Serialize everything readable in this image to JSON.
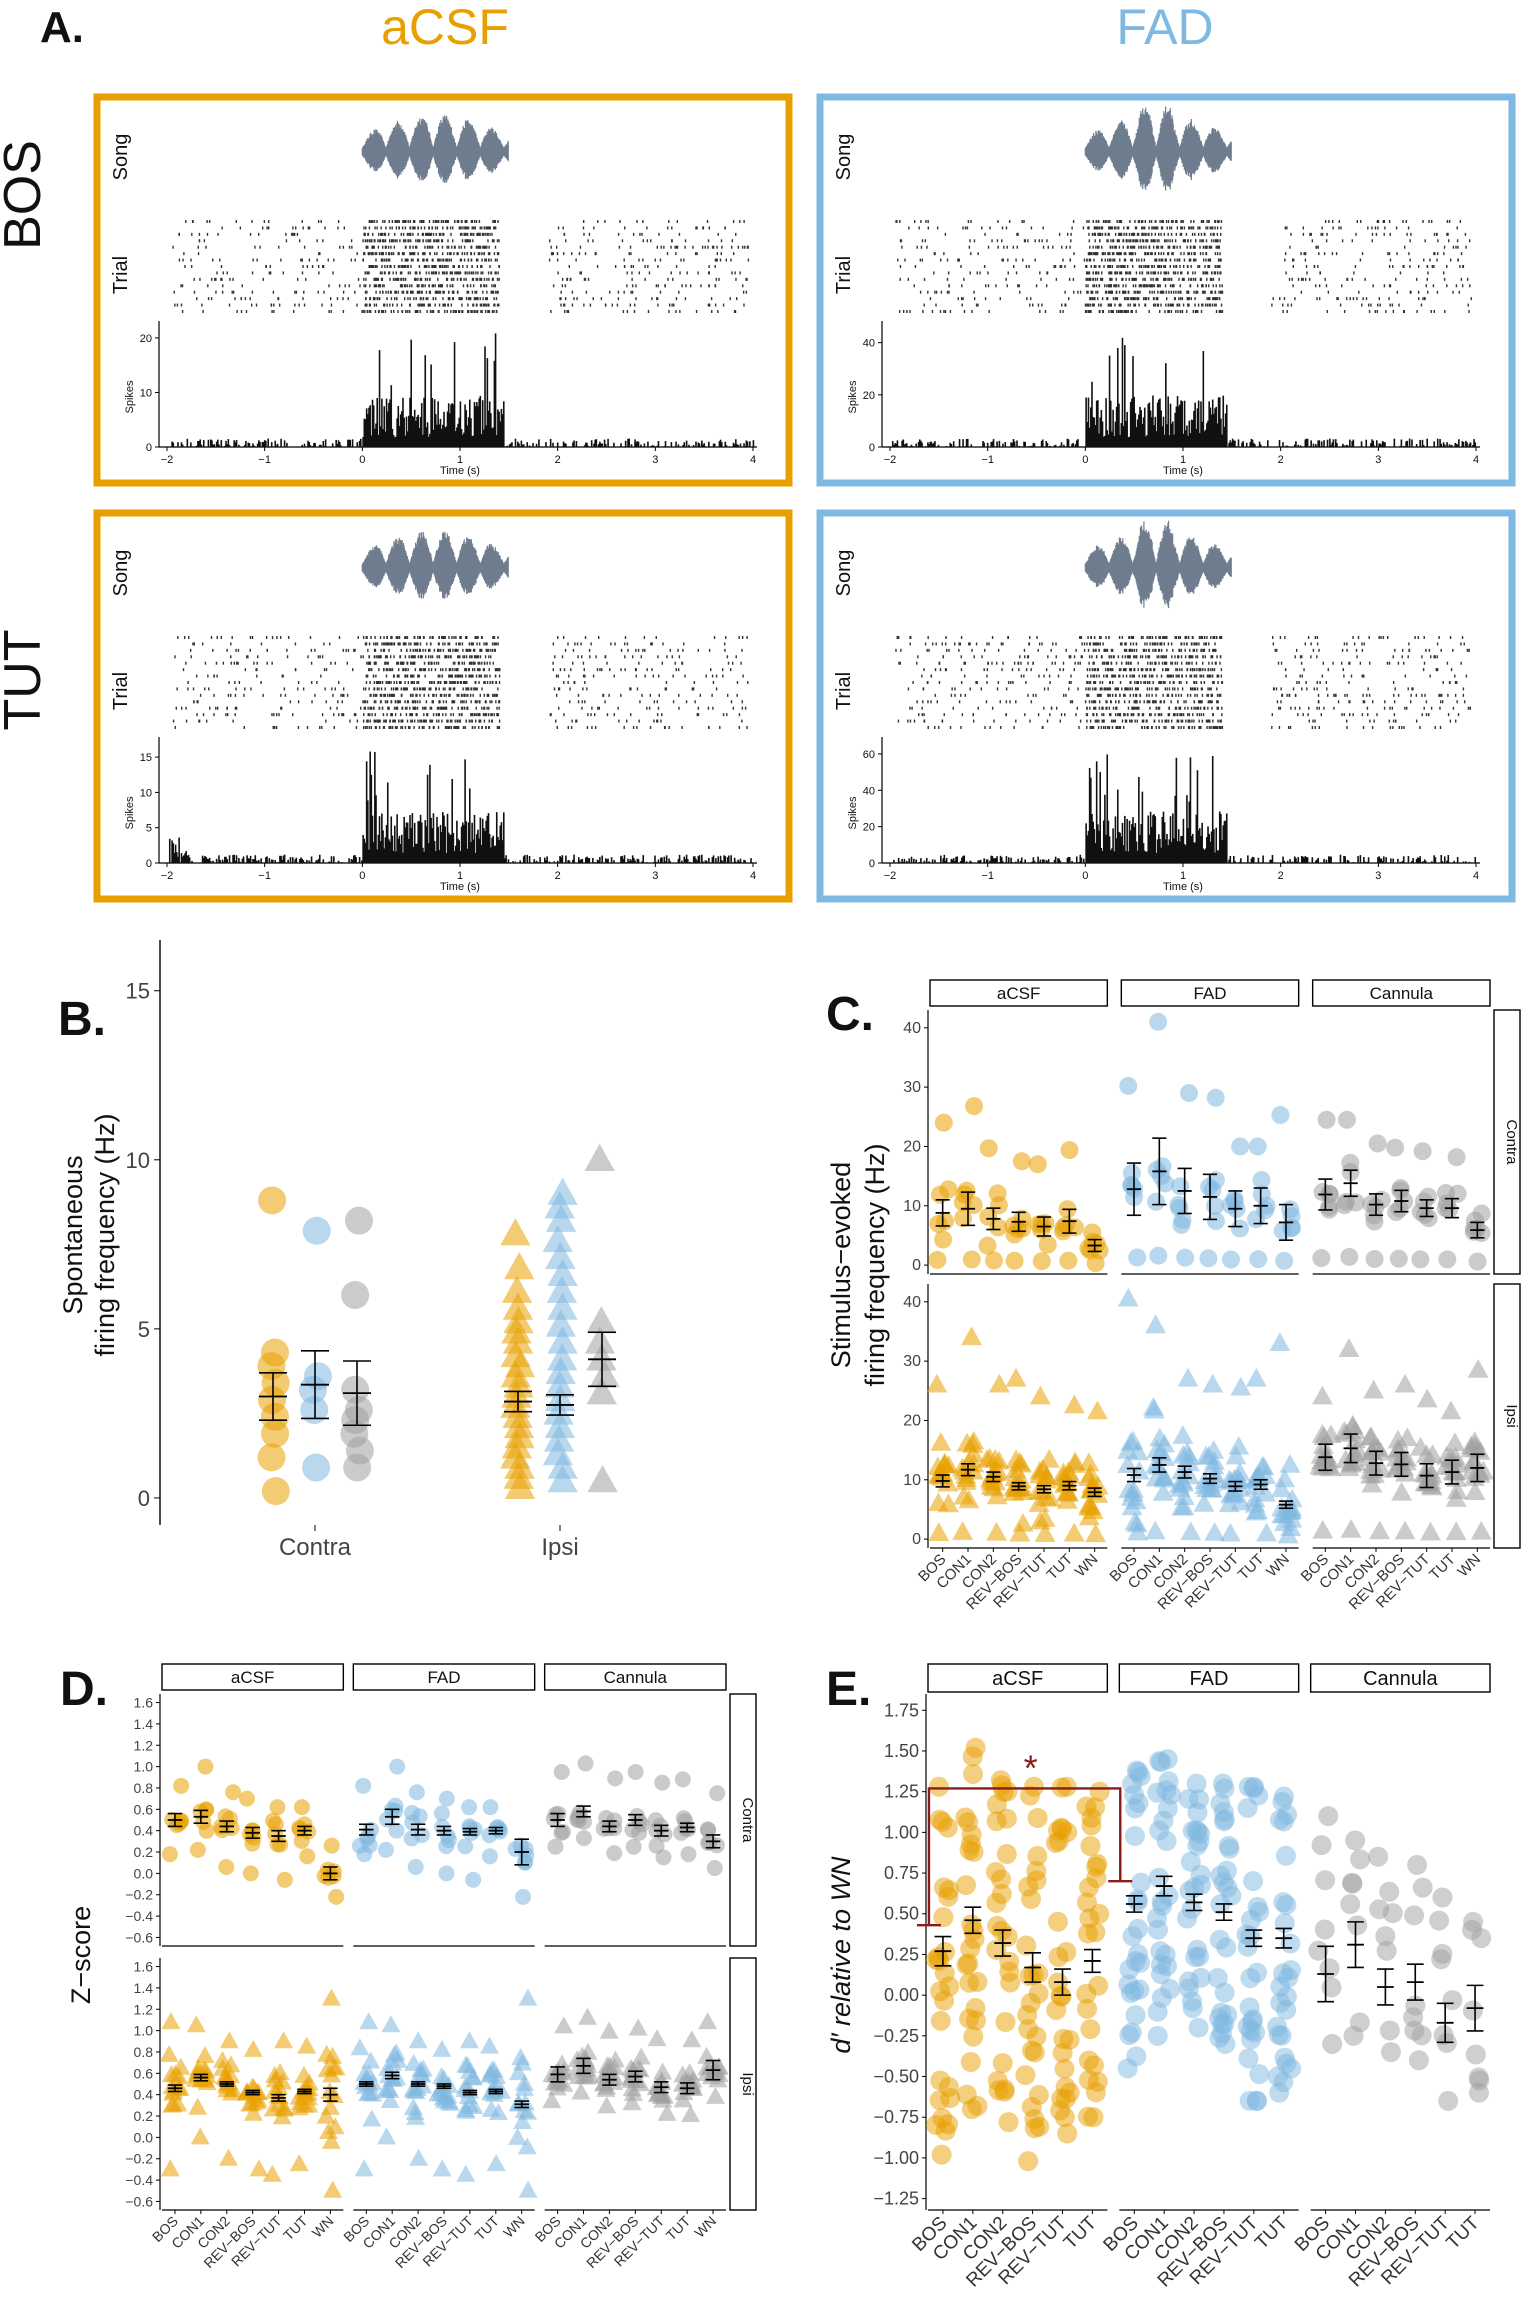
{
  "colors": {
    "acsf": "#E8A000",
    "fad": "#7FB8E0",
    "cannula": "#A0A0A0",
    "sig": "#8B1A1A",
    "wave": "#6F7D8F",
    "ink": "#111111"
  },
  "panel_a": {
    "label": "A.",
    "col_headers": [
      "aCSF",
      "FAD"
    ],
    "row_labels": [
      "BOS",
      "TUT"
    ],
    "track_labels": {
      "song": "Song",
      "trial": "Trial",
      "spikes": "Spikes"
    },
    "xlabel": "Time (s)",
    "xticks": [
      "−2",
      "−1",
      "0",
      "1",
      "2",
      "3",
      "4"
    ],
    "subpanels": [
      {
        "col": "aCSF",
        "row": "BOS",
        "yticks": [
          "0",
          "10",
          "20"
        ],
        "ymax": 22
      },
      {
        "col": "FAD",
        "row": "BOS",
        "yticks": [
          "0",
          "20",
          "40"
        ],
        "ymax": 46
      },
      {
        "col": "aCSF",
        "row": "TUT",
        "yticks": [
          "0",
          "5",
          "10",
          "15"
        ],
        "ymax": 17
      },
      {
        "col": "FAD",
        "row": "TUT",
        "yticks": [
          "0",
          "20",
          "40",
          "60"
        ],
        "ymax": 66
      }
    ]
  },
  "chart_data": [
    {
      "id": "B",
      "label": "B.",
      "type": "scatter",
      "ylabel_lines": [
        "Spontaneous",
        "firing frequency (Hz)"
      ],
      "categories": [
        "Contra",
        "Ipsi"
      ],
      "ylim": [
        -0.8,
        16.5
      ],
      "yticks": [
        "0",
        "5",
        "10",
        "15"
      ],
      "series": [
        {
          "name": "aCSF",
          "color_key": "acsf",
          "contra": {
            "mean": 3.0,
            "err": 0.7,
            "points": [
              8.8,
              4.3,
              3.9,
              3.4,
              2.9,
              2.4,
              1.9,
              1.2,
              0.2
            ]
          },
          "ipsi": {
            "mean": 2.85,
            "err": 0.3,
            "points": [
              7.8,
              6.8,
              6.1,
              5.6,
              5.2,
              4.9,
              4.6,
              4.2,
              3.9,
              3.6,
              3.3,
              3.0,
              2.7,
              2.4,
              2.1,
              1.8,
              1.5,
              1.2,
              0.9,
              0.6,
              0.3
            ]
          }
        },
        {
          "name": "FAD",
          "color_key": "fad",
          "contra": {
            "mean": 3.35,
            "err": 1.0,
            "points": [
              7.9,
              3.6,
              3.2,
              2.6,
              0.9
            ]
          },
          "ipsi": {
            "mean": 2.75,
            "err": 0.3,
            "points": [
              9.0,
              8.6,
              8.2,
              7.6,
              7.1,
              6.6,
              6.1,
              5.6,
              5.1,
              4.6,
              4.1,
              3.7,
              3.3,
              2.9,
              2.5,
              2.1,
              1.7,
              1.3,
              0.9,
              0.5
            ]
          }
        },
        {
          "name": "Cannula",
          "color_key": "cannula",
          "contra": {
            "mean": 3.1,
            "err": 0.95,
            "points": [
              8.2,
              6.0,
              3.2,
              2.6,
              2.3,
              1.9,
              1.4,
              0.9
            ]
          },
          "ipsi": {
            "mean": 4.1,
            "err": 0.8,
            "points": [
              10.0,
              5.2,
              4.6,
              4.1,
              3.6,
              3.1,
              0.5
            ]
          }
        }
      ],
      "xlabel": ""
    },
    {
      "id": "C",
      "label": "C.",
      "type": "scatter",
      "ylabel_lines": [
        "Stimulus−evoked",
        "firing frequency (Hz)"
      ],
      "facets": [
        "aCSF",
        "FAD",
        "Cannula"
      ],
      "rows": [
        "Contra",
        "Ipsi"
      ],
      "categories": [
        [
          "BOS",
          "CON1",
          "CON2",
          "REV−BOS",
          "REV−TUT",
          "TUT",
          "WN"
        ],
        [
          "BOS",
          "CON1",
          "CON2",
          "REV−BOS",
          "REV−TUT",
          "TUT",
          "WN"
        ],
        [
          "BOS",
          "CON1",
          "CON2",
          "REV−BOS",
          "REV−TUT",
          "TUT",
          "WN"
        ]
      ],
      "ylim": [
        -1.5,
        43
      ],
      "yticks": [
        "0",
        "10",
        "20",
        "30",
        "40"
      ],
      "means": {
        "Contra": [
          [
            8.8,
            9.5,
            7.8,
            7.3,
            6.5,
            7.4,
            3.3
          ],
          [
            12.8,
            15.8,
            12.5,
            11.5,
            9.5,
            10.0,
            7.2
          ],
          [
            11.9,
            13.8,
            10.2,
            10.8,
            9.6,
            9.6,
            5.9
          ]
        ],
        "Ipsi": [
          [
            9.8,
            11.7,
            10.5,
            8.9,
            8.4,
            9.0,
            7.9
          ],
          [
            10.8,
            12.5,
            11.3,
            10.2,
            8.9,
            9.2,
            5.8
          ],
          [
            13.8,
            15.3,
            12.8,
            12.6,
            10.7,
            11.3,
            12.0
          ]
        ]
      },
      "errs": {
        "Contra": [
          [
            2.2,
            2.8,
            1.8,
            1.6,
            1.6,
            2.0,
            1.0
          ],
          [
            4.4,
            5.6,
            3.8,
            3.8,
            3.0,
            3.0,
            3.0
          ],
          [
            2.6,
            2.2,
            1.8,
            1.8,
            1.4,
            1.6,
            1.3
          ]
        ],
        "Ipsi": [
          [
            1.0,
            1.0,
            0.8,
            0.6,
            0.6,
            0.7,
            0.7
          ],
          [
            1.1,
            1.2,
            1.0,
            0.8,
            0.8,
            0.8,
            0.6
          ],
          [
            2.2,
            2.4,
            2.0,
            2.0,
            2.0,
            2.0,
            2.3
          ]
        ]
      },
      "outliers": {
        "Contra": [
          [
            24,
            26.8,
            19.7,
            17.5,
            17.0,
            19.4,
            5.5
          ],
          [
            30.2,
            41.0,
            29.0,
            28.2,
            20.0,
            20.0,
            25.3
          ],
          [
            24.5,
            24.5,
            20.5,
            19.8,
            19.2,
            18.2,
            8.7
          ]
        ],
        "Ipsi": [
          [
            26,
            34,
            26,
            27,
            24,
            22.5,
            21.5
          ],
          [
            40.5,
            36,
            27,
            26,
            25.5,
            27,
            33
          ],
          [
            24,
            32,
            25,
            26,
            23.5,
            21.5,
            28.5
          ]
        ]
      },
      "xlabel": ""
    },
    {
      "id": "D",
      "label": "D.",
      "type": "scatter",
      "ylabel": "Z−score",
      "facets": [
        "aCSF",
        "FAD",
        "Cannula"
      ],
      "rows": [
        "Contra",
        "Ipsi"
      ],
      "categories": [
        [
          "BOS",
          "CON1",
          "CON2",
          "REV−BOS",
          "REV−TUT",
          "TUT",
          "WN"
        ],
        [
          "BOS",
          "CON1",
          "CON2",
          "REV−BOS",
          "REV−TUT",
          "TUT",
          "WN"
        ],
        [
          "BOS",
          "CON1",
          "CON2",
          "REV−BOS",
          "REV−TUT",
          "TUT",
          "WN"
        ]
      ],
      "ylim": [
        -0.68,
        1.68
      ],
      "yticks": [
        "−0.6",
        "−0.4",
        "−0.2",
        "0.0",
        "0.2",
        "0.4",
        "0.6",
        "0.8",
        "1.0",
        "1.2",
        "1.4",
        "1.6"
      ],
      "means": {
        "Contra": [
          [
            0.5,
            0.53,
            0.44,
            0.38,
            0.35,
            0.4,
            0.0
          ],
          [
            0.41,
            0.53,
            0.41,
            0.4,
            0.39,
            0.4,
            0.2
          ],
          [
            0.5,
            0.58,
            0.44,
            0.5,
            0.4,
            0.43,
            0.3
          ]
        ],
        "Ipsi": [
          [
            0.46,
            0.56,
            0.5,
            0.42,
            0.37,
            0.43,
            0.4
          ],
          [
            0.5,
            0.58,
            0.5,
            0.48,
            0.42,
            0.43,
            0.31
          ],
          [
            0.59,
            0.67,
            0.54,
            0.57,
            0.47,
            0.46,
            0.63
          ]
        ]
      },
      "errs": {
        "Contra": [
          [
            0.06,
            0.06,
            0.05,
            0.05,
            0.05,
            0.04,
            0.06
          ],
          [
            0.05,
            0.07,
            0.05,
            0.04,
            0.03,
            0.03,
            0.12
          ],
          [
            0.06,
            0.05,
            0.05,
            0.05,
            0.05,
            0.04,
            0.06
          ]
        ],
        "Ipsi": [
          [
            0.03,
            0.03,
            0.02,
            0.02,
            0.03,
            0.02,
            0.06
          ],
          [
            0.02,
            0.03,
            0.02,
            0.02,
            0.02,
            0.02,
            0.03
          ],
          [
            0.07,
            0.07,
            0.05,
            0.05,
            0.05,
            0.05,
            0.09
          ]
        ]
      },
      "ranges": {
        "Contra": [
          [
            0.18,
            0.82
          ],
          [
            0.22,
            1.0
          ],
          [
            0.06,
            0.76
          ],
          [
            0.0,
            0.7
          ],
          [
            -0.06,
            0.62
          ],
          [
            0.16,
            0.62
          ],
          [
            -0.22,
            0.26
          ]
        ],
        "Ipsi": [
          [
            -0.3,
            1.08
          ],
          [
            0.0,
            1.05
          ],
          [
            -0.2,
            0.9
          ],
          [
            -0.3,
            0.82
          ],
          [
            -0.35,
            0.9
          ],
          [
            -0.25,
            0.85
          ],
          [
            -0.5,
            1.3
          ]
        ]
      },
      "xlabel": ""
    },
    {
      "id": "E",
      "label": "E.",
      "type": "scatter",
      "ylabel": "d′ relative to WN",
      "facets": [
        "aCSF",
        "FAD",
        "Cannula"
      ],
      "categories": [
        "BOS",
        "CON1",
        "CON2",
        "REV−BOS",
        "REV−TUT",
        "TUT"
      ],
      "ylim": [
        -1.32,
        1.85
      ],
      "yticks": [
        "−1.25",
        "−1.00",
        "−0.75",
        "−0.50",
        "−0.25",
        "0.00",
        "0.25",
        "0.50",
        "0.75",
        "1.00",
        "1.25",
        "1.50",
        "1.75"
      ],
      "means": [
        [
          0.27,
          0.46,
          0.32,
          0.17,
          0.08,
          0.21
        ],
        [
          0.56,
          0.67,
          0.57,
          0.51,
          0.35,
          0.35
        ],
        [
          0.13,
          0.31,
          0.05,
          0.08,
          -0.17,
          -0.08
        ]
      ],
      "errs": [
        [
          0.09,
          0.08,
          0.08,
          0.09,
          0.08,
          0.07
        ],
        [
          0.05,
          0.06,
          0.05,
          0.05,
          0.05,
          0.06
        ],
        [
          0.17,
          0.14,
          0.11,
          0.11,
          0.12,
          0.14
        ]
      ],
      "ranges": [
        [
          [
            -0.98,
            1.28
          ],
          [
            -0.7,
            1.52
          ],
          [
            -0.78,
            1.32
          ],
          [
            -1.02,
            1.28
          ],
          [
            -0.85,
            1.28
          ],
          [
            -0.75,
            1.25
          ]
        ],
        [
          [
            -0.45,
            1.38
          ],
          [
            -0.25,
            1.45
          ],
          [
            -0.2,
            1.3
          ],
          [
            -0.3,
            1.3
          ],
          [
            -0.65,
            1.28
          ],
          [
            -0.6,
            1.22
          ]
        ],
        [
          [
            -0.3,
            1.1
          ],
          [
            -0.25,
            0.95
          ],
          [
            -0.35,
            0.85
          ],
          [
            -0.4,
            0.8
          ],
          [
            -0.65,
            0.6
          ],
          [
            -0.6,
            0.45
          ]
        ]
      ],
      "significance": {
        "marker": "*",
        "from": "aCSF BOS",
        "to": "FAD BOS",
        "y_left": 0.43,
        "y_right": 0.7,
        "y_top": 1.27
      },
      "xlabel": ""
    }
  ]
}
